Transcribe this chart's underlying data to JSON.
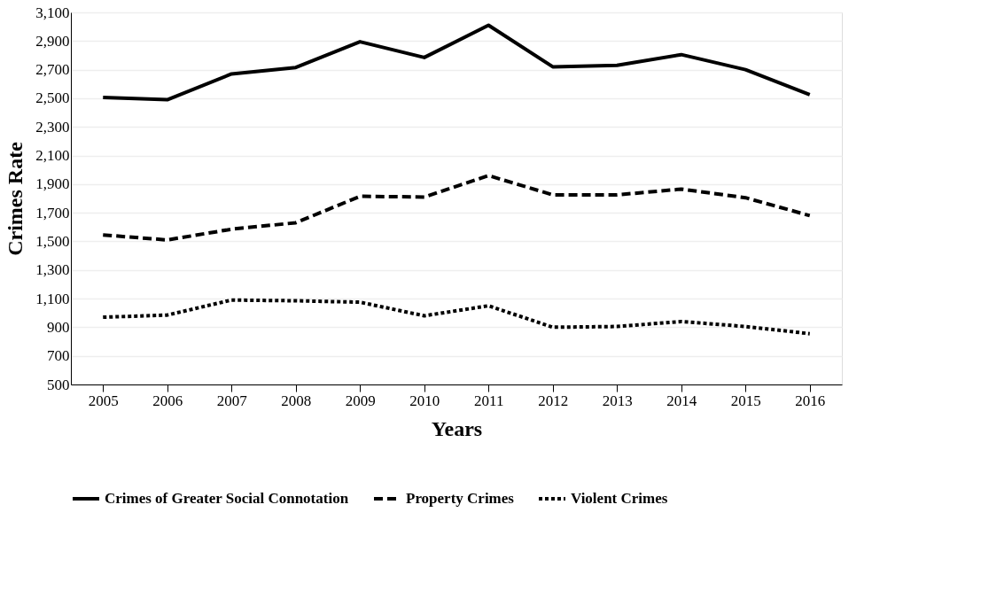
{
  "chart_data": {
    "type": "line",
    "xlabel": "Years",
    "ylabel": "Crimes Rate",
    "categories": [
      "2005",
      "2006",
      "2007",
      "2008",
      "2009",
      "2010",
      "2011",
      "2012",
      "2013",
      "2014",
      "2015",
      "2016"
    ],
    "series": [
      {
        "name": "Crimes of Greater Social Connotation",
        "color": "#000000",
        "line_style": "solid",
        "values": [
          2505,
          2490,
          2670,
          2715,
          2895,
          2785,
          3010,
          2720,
          2730,
          2805,
          2700,
          2525
        ]
      },
      {
        "name": "Property Crimes",
        "color": "#000000",
        "line_style": "dashed",
        "values": [
          1545,
          1510,
          1585,
          1630,
          1815,
          1810,
          1960,
          1825,
          1825,
          1865,
          1805,
          1680
        ]
      },
      {
        "name": "Violent Crimes",
        "color": "#000000",
        "line_style": "dotted",
        "values": [
          970,
          985,
          1090,
          1085,
          1075,
          980,
          1050,
          900,
          905,
          940,
          905,
          855
        ]
      }
    ],
    "ylim": [
      500,
      3100
    ],
    "yticks": [
      {
        "value": 500,
        "label": "500"
      },
      {
        "value": 700,
        "label": "700"
      },
      {
        "value": 900,
        "label": "900"
      },
      {
        "value": 1100,
        "label": "1,100"
      },
      {
        "value": 1300,
        "label": "1,300"
      },
      {
        "value": 1500,
        "label": "1,500"
      },
      {
        "value": 1700,
        "label": "1,700"
      },
      {
        "value": 1900,
        "label": "1,900"
      },
      {
        "value": 2100,
        "label": "2,100"
      },
      {
        "value": 2300,
        "label": "2,300"
      },
      {
        "value": 2500,
        "label": "2,500"
      },
      {
        "value": 2700,
        "label": "2,700"
      },
      {
        "value": 2900,
        "label": "2,900"
      },
      {
        "value": 3100,
        "label": "3,100"
      }
    ],
    "grid": "y",
    "legend": "bottom",
    "marker": "none"
  }
}
